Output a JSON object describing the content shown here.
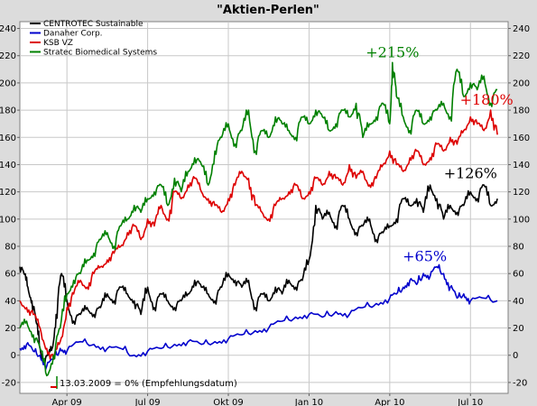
{
  "chart_data": {
    "type": "line",
    "title": "\"Aktien-Perlen\"",
    "xlabel": "",
    "ylabel": "",
    "x_ticks": [
      "Apr 09",
      "Jul 09",
      "Okt 09",
      "Jan 10",
      "Apr 10",
      "Jul 10"
    ],
    "x_tick_positions": [
      1.0,
      4.0,
      7.0,
      10.0,
      13.0,
      16.0
    ],
    "x_range": [
      -0.75,
      17.4
    ],
    "y_ticks": [
      -20,
      0,
      20,
      40,
      60,
      80,
      100,
      120,
      140,
      160,
      180,
      200,
      220,
      240
    ],
    "ylim": [
      -28,
      245
    ],
    "grid": true,
    "axes_labels_both_sides": true,
    "legend_position": "top-left",
    "note": "13.03.2009 = 0% (Empfehlungsdatum)",
    "series": [
      {
        "name": "CENTROTEC Sustainable",
        "color": "#000000",
        "x": [
          -0.75,
          -0.6,
          -0.45,
          -0.3,
          -0.15,
          0.0,
          0.15,
          0.3,
          0.45,
          0.6,
          0.8,
          1.0,
          1.25,
          1.5,
          1.75,
          2.0,
          2.25,
          2.5,
          2.75,
          3.0,
          3.25,
          3.5,
          3.75,
          4.0,
          4.25,
          4.5,
          4.75,
          5.0,
          5.25,
          5.5,
          5.75,
          6.0,
          6.25,
          6.5,
          6.75,
          7.0,
          7.25,
          7.5,
          7.75,
          8.0,
          8.25,
          8.5,
          8.75,
          9.0,
          9.25,
          9.5,
          9.75,
          10.0,
          10.25,
          10.5,
          10.75,
          11.0,
          11.25,
          11.5,
          11.75,
          12.0,
          12.25,
          12.5,
          12.75,
          13.0,
          13.25,
          13.5,
          13.75,
          14.0,
          14.25,
          14.5,
          14.75,
          15.0,
          15.25,
          15.5,
          15.75,
          16.0,
          16.25,
          16.5,
          16.75,
          17.0
        ],
        "values": [
          65,
          60,
          50,
          40,
          25,
          5,
          -5,
          0,
          5,
          30,
          60,
          40,
          25,
          30,
          35,
          30,
          35,
          45,
          40,
          50,
          45,
          40,
          30,
          50,
          35,
          45,
          40,
          35,
          40,
          45,
          55,
          50,
          45,
          40,
          50,
          60,
          55,
          50,
          55,
          35,
          45,
          40,
          50,
          45,
          55,
          50,
          55,
          70,
          110,
          100,
          105,
          95,
          110,
          100,
          90,
          95,
          100,
          85,
          90,
          95,
          100,
          115,
          110,
          115,
          105,
          125,
          115,
          100,
          110,
          105,
          110,
          120,
          115,
          125,
          110,
          115
        ]
      },
      {
        "name": "Danaher Corp.",
        "color": "#0000cc",
        "x": [
          -0.75,
          -0.5,
          -0.25,
          0.0,
          0.25,
          0.5,
          0.75,
          1.0,
          1.5,
          2.0,
          2.5,
          3.0,
          3.5,
          4.0,
          4.5,
          5.0,
          5.5,
          6.0,
          6.5,
          7.0,
          7.5,
          8.0,
          8.5,
          9.0,
          9.5,
          10.0,
          10.5,
          11.0,
          11.5,
          12.0,
          12.5,
          13.0,
          13.25,
          13.5,
          13.75,
          14.0,
          14.25,
          14.5,
          14.75,
          15.0,
          15.25,
          15.5,
          15.75,
          16.0,
          16.5,
          17.0
        ],
        "values": [
          5,
          8,
          3,
          0,
          -8,
          -3,
          5,
          3,
          10,
          8,
          5,
          5,
          0,
          3,
          5,
          8,
          10,
          8,
          10,
          12,
          15,
          18,
          20,
          25,
          28,
          30,
          28,
          32,
          30,
          35,
          38,
          42,
          45,
          50,
          55,
          52,
          60,
          58,
          65,
          60,
          50,
          42,
          45,
          40,
          42,
          40
        ]
      },
      {
        "name": "KSB VZ",
        "color": "#dd0000",
        "x": [
          -0.75,
          -0.5,
          -0.25,
          0.0,
          0.25,
          0.5,
          0.75,
          1.0,
          1.25,
          1.5,
          1.75,
          2.0,
          2.25,
          2.5,
          2.75,
          3.0,
          3.25,
          3.5,
          3.75,
          4.0,
          4.25,
          4.5,
          4.75,
          5.0,
          5.25,
          5.5,
          5.75,
          6.0,
          6.25,
          6.5,
          6.75,
          7.0,
          7.25,
          7.5,
          7.75,
          8.0,
          8.25,
          8.5,
          8.75,
          9.0,
          9.25,
          9.5,
          9.75,
          10.0,
          10.25,
          10.5,
          10.75,
          11.0,
          11.25,
          11.5,
          11.75,
          12.0,
          12.25,
          12.5,
          12.75,
          13.0,
          13.25,
          13.5,
          13.75,
          14.0,
          14.25,
          14.5,
          14.75,
          15.0,
          15.25,
          15.5,
          15.75,
          16.0,
          16.25,
          16.5,
          16.75,
          17.0
        ],
        "values": [
          40,
          35,
          30,
          20,
          5,
          -3,
          10,
          35,
          45,
          55,
          50,
          60,
          65,
          70,
          75,
          80,
          90,
          95,
          85,
          100,
          95,
          110,
          100,
          120,
          115,
          125,
          130,
          120,
          115,
          110,
          105,
          115,
          125,
          135,
          130,
          110,
          105,
          100,
          110,
          115,
          120,
          125,
          115,
          120,
          130,
          125,
          135,
          130,
          125,
          140,
          130,
          135,
          125,
          130,
          140,
          150,
          140,
          135,
          145,
          150,
          140,
          145,
          155,
          150,
          160,
          155,
          165,
          175,
          170,
          165,
          180,
          162
        ]
      },
      {
        "name": "Stratec Biomedical Systems",
        "color": "#008000",
        "x": [
          -0.75,
          -0.5,
          -0.25,
          0.0,
          0.25,
          0.5,
          0.75,
          1.0,
          1.25,
          1.5,
          1.75,
          2.0,
          2.25,
          2.5,
          2.75,
          3.0,
          3.25,
          3.5,
          3.75,
          4.0,
          4.25,
          4.5,
          4.75,
          5.0,
          5.25,
          5.5,
          5.75,
          6.0,
          6.25,
          6.5,
          6.75,
          7.0,
          7.25,
          7.5,
          7.75,
          8.0,
          8.25,
          8.5,
          8.75,
          9.0,
          9.25,
          9.5,
          9.75,
          10.0,
          10.25,
          10.5,
          10.75,
          11.0,
          11.25,
          11.5,
          11.75,
          12.0,
          12.25,
          12.5,
          12.75,
          13.0,
          13.1,
          13.25,
          13.5,
          13.75,
          14.0,
          14.25,
          14.5,
          14.75,
          15.0,
          15.25,
          15.5,
          15.75,
          16.0,
          16.25,
          16.5,
          16.75,
          17.0
        ],
        "values": [
          20,
          25,
          15,
          5,
          -15,
          0,
          20,
          45,
          55,
          60,
          70,
          75,
          85,
          90,
          80,
          95,
          100,
          110,
          105,
          115,
          120,
          125,
          110,
          130,
          120,
          135,
          145,
          140,
          125,
          150,
          160,
          170,
          155,
          165,
          180,
          150,
          165,
          160,
          175,
          170,
          165,
          160,
          175,
          170,
          180,
          175,
          165,
          170,
          180,
          175,
          185,
          160,
          170,
          175,
          185,
          170,
          215,
          190,
          175,
          165,
          180,
          170,
          175,
          180,
          185,
          175,
          210,
          190,
          200,
          195,
          205,
          185,
          195
        ]
      }
    ],
    "annotations": [
      {
        "text": "+215%",
        "color": "#008000",
        "x": 13.1,
        "y": 215
      },
      {
        "text": "+180%",
        "color": "#dd0000",
        "x": 16.6,
        "y": 180
      },
      {
        "text": "+126%",
        "color": "#000000",
        "x": 16.0,
        "y": 126
      },
      {
        "text": "+65%",
        "color": "#0000cc",
        "x": 14.3,
        "y": 65
      }
    ]
  }
}
